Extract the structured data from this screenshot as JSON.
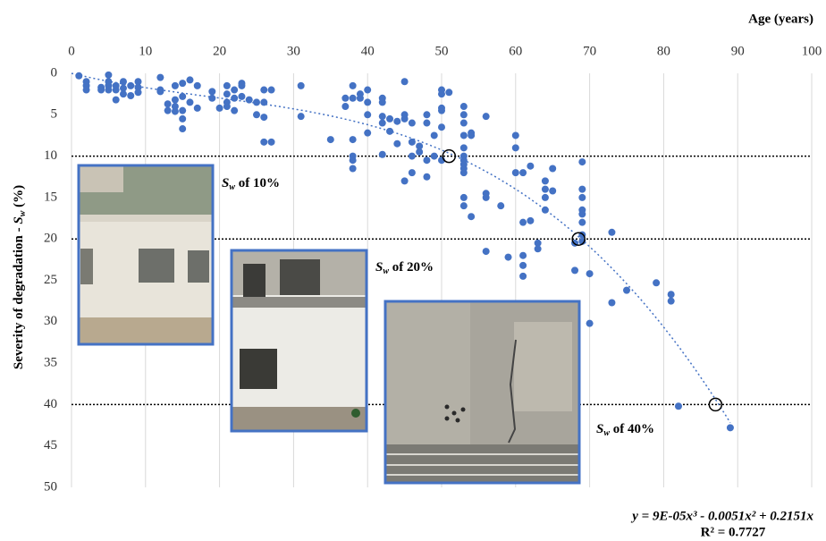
{
  "chart_data": {
    "type": "scatter",
    "x_label": "Age (years)",
    "y_label": {
      "text": "Severity of degradation - ",
      "symbol": "S",
      "subscript": "w",
      "unit": " (%)"
    },
    "xlim": [
      0,
      100
    ],
    "xticks": [
      0,
      10,
      20,
      30,
      40,
      50,
      60,
      70,
      80,
      90,
      100
    ],
    "ylim": [
      0,
      50
    ],
    "yticks": [
      0,
      5,
      10,
      15,
      20,
      25,
      30,
      35,
      40,
      45,
      50
    ],
    "y_inverted": true,
    "x_axis_top": true,
    "grid": true,
    "series": [
      {
        "color": "#4472c4",
        "x": [
          1,
          2,
          2,
          2,
          4,
          4,
          5,
          5,
          5,
          5,
          6,
          6,
          6,
          7,
          7,
          7,
          8,
          8,
          9,
          9,
          9,
          12,
          12,
          12,
          13,
          13,
          14,
          14,
          14,
          14,
          15,
          15,
          15,
          15,
          15,
          16,
          16,
          17,
          17,
          19,
          19,
          20,
          21,
          21,
          21,
          21,
          22,
          22,
          22,
          23,
          23,
          23,
          24,
          25,
          25,
          26,
          26,
          26,
          26,
          27,
          27,
          31,
          31,
          35,
          37,
          37,
          38,
          38,
          38,
          38,
          38,
          38,
          39,
          39,
          40,
          40,
          40,
          40,
          42,
          42,
          42,
          42,
          42,
          43,
          43,
          44,
          44,
          45,
          45,
          45,
          45,
          46,
          46,
          46,
          46,
          47,
          47,
          48,
          48,
          48,
          48,
          49,
          49,
          50,
          50,
          50,
          50,
          50,
          50,
          51,
          53,
          53,
          53,
          53,
          53,
          53,
          53,
          53,
          53,
          53,
          53,
          53,
          54,
          54,
          54,
          56,
          56,
          56,
          56,
          58,
          59,
          60,
          60,
          60,
          61,
          61,
          61,
          61,
          61,
          62,
          62,
          63,
          63,
          64,
          64,
          64,
          64,
          65,
          65,
          68,
          68,
          69,
          69,
          69,
          69,
          69,
          69,
          69,
          69,
          70,
          70,
          73,
          73,
          75,
          79,
          81,
          81,
          82,
          89
        ],
        "values": [
          0.3,
          1,
          1.5,
          2,
          1.7,
          2,
          0.2,
          1,
          1.5,
          2,
          1.5,
          2,
          3.2,
          1,
          1.8,
          2.5,
          1.5,
          2.7,
          1,
          1.7,
          2.3,
          0.5,
          2,
          2.2,
          3.7,
          4.5,
          1.5,
          3.2,
          4,
          4.6,
          1.2,
          2.8,
          4.5,
          5.5,
          6.7,
          0.8,
          3.5,
          1.5,
          4.2,
          2.2,
          3,
          4.2,
          1.5,
          2.5,
          3.5,
          4,
          2,
          3,
          4.5,
          1.2,
          1.5,
          2.8,
          3.2,
          3.5,
          5,
          2,
          3.5,
          5.3,
          8.3,
          2,
          8.3,
          1.5,
          5.2,
          8,
          3,
          4,
          1.5,
          3,
          8,
          10,
          10.5,
          11.5,
          2.5,
          3,
          2,
          3.5,
          5,
          7.2,
          3,
          3.5,
          5.2,
          6,
          9.8,
          5.5,
          7,
          5.8,
          8.5,
          1,
          5,
          5.5,
          13,
          6,
          8.3,
          10,
          12,
          8.8,
          9.5,
          5,
          6,
          10.5,
          12.5,
          7.5,
          10,
          2,
          2.5,
          4.2,
          4.5,
          6.5,
          10.5,
          2.3,
          4,
          5,
          6,
          7.5,
          9,
          10,
          10.5,
          11,
          11.5,
          12,
          15,
          16,
          7.2,
          7.5,
          17.3,
          5.2,
          14.5,
          15,
          21.5,
          16,
          22.2,
          7.5,
          9,
          12,
          12,
          18,
          22,
          23.2,
          24.5,
          11.2,
          17.8,
          20.5,
          21.2,
          13,
          14,
          15,
          16.5,
          11.5,
          14.2,
          20.5,
          23.8,
          10.7,
          14,
          15,
          16.5,
          17,
          18,
          19.5,
          20.3,
          24.2,
          30.2,
          19.2,
          27.7,
          26.2,
          25.3,
          26.7,
          27.5,
          40.2,
          42.8
        ]
      }
    ],
    "highlights": {
      "x": [
        51,
        68.5,
        87
      ],
      "values": [
        10,
        20,
        40
      ]
    },
    "reference_lines": [
      10,
      20,
      40
    ],
    "trendline": {
      "coefficients": [
        9e-05,
        -0.0051,
        0.2151
      ],
      "equation": "y = 9E-05x³ - 0.0051x² + 0.2151x",
      "r_squared": "R² = 0.7727"
    },
    "annotations": [
      {
        "symbol": "S",
        "subscript": "w",
        "text": " of 10%"
      },
      {
        "symbol": "S",
        "subscript": "w",
        "text": " of 20%"
      },
      {
        "symbol": "S",
        "subscript": "w",
        "text": " of 40%"
      }
    ]
  }
}
